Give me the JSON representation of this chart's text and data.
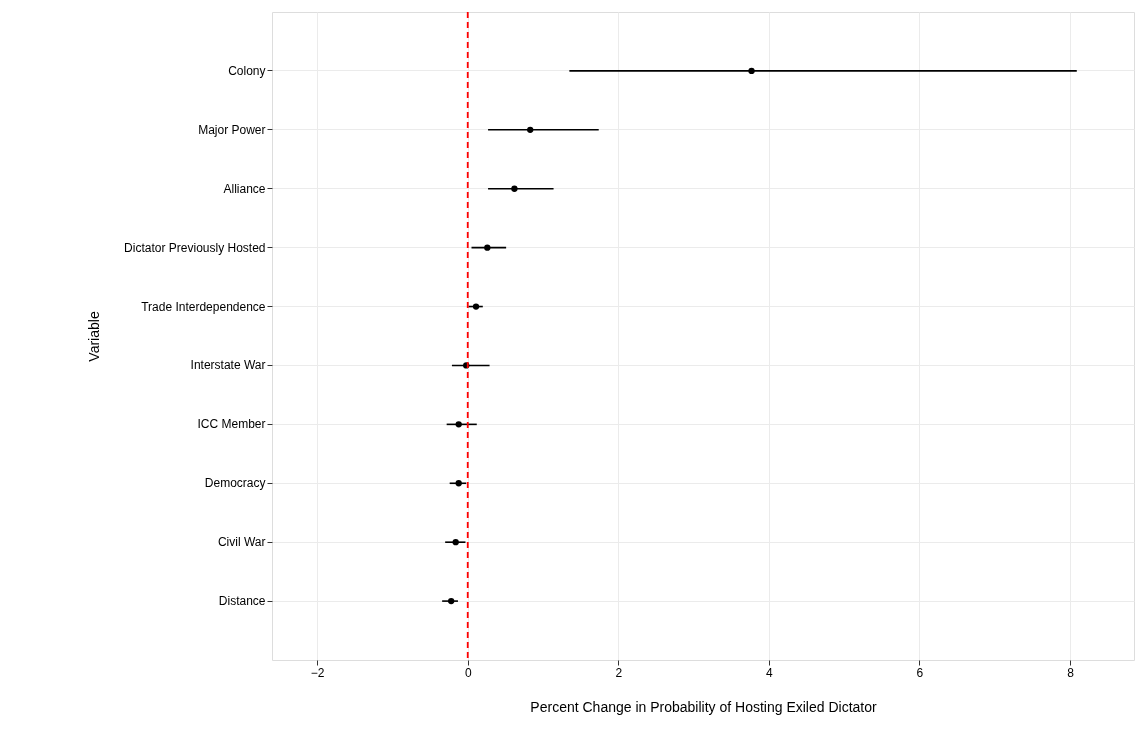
{
  "chart_data": {
    "type": "scatter",
    "orientation": "horizontal",
    "xlabel": "Percent Change in Probability of Hosting Exiled Dictator",
    "ylabel": "Variable",
    "categories": [
      "Colony",
      "Major Power",
      "Alliance",
      "Dictator Previously Hosted",
      "Trade Interdependence",
      "Interstate War",
      "ICC Member",
      "Democracy",
      "Civil War",
      "Distance"
    ],
    "series": [
      {
        "color": "#000000",
        "values": [
          3.77,
          0.83,
          0.62,
          0.26,
          0.11,
          -0.02,
          -0.12,
          -0.12,
          -0.16,
          -0.22
        ],
        "errors": [
          [
            1.35,
            8.09
          ],
          [
            0.27,
            1.74
          ],
          [
            0.27,
            1.14
          ],
          [
            0.05,
            0.51
          ],
          [
            0.01,
            0.2
          ],
          [
            -0.21,
            0.29
          ],
          [
            -0.28,
            0.12
          ],
          [
            -0.24,
            -0.02
          ],
          [
            -0.3,
            -0.03
          ],
          [
            -0.34,
            -0.13
          ]
        ]
      }
    ],
    "xlim": [
      -2.6,
      8.85
    ],
    "xticks": [
      -2,
      0,
      2,
      4,
      6,
      8
    ],
    "ref_lines": [
      {
        "axis": "x",
        "value": 0,
        "color": "#ff0000",
        "line_style": "dashed"
      }
    ],
    "grid": true,
    "marker": "circle"
  }
}
